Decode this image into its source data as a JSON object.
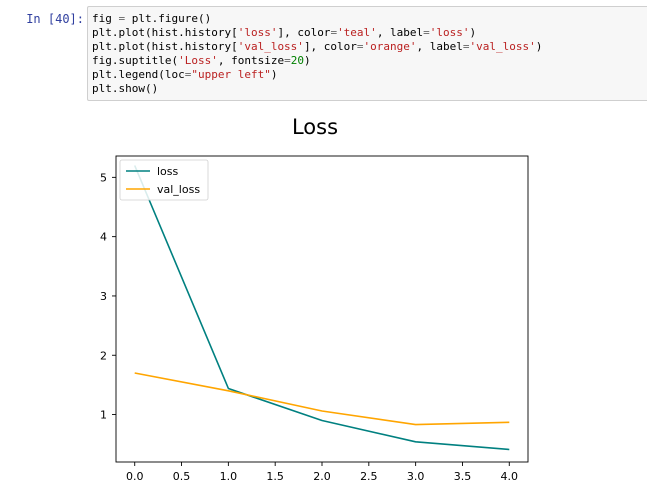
{
  "cell": {
    "prompt": "In [40]:",
    "code_lines": [
      [
        {
          "t": "fig ",
          "c": ""
        },
        {
          "t": "=",
          "c": "op"
        },
        {
          "t": " plt.figure()",
          "c": ""
        }
      ],
      [
        {
          "t": "plt.plot(hist.history[",
          "c": ""
        },
        {
          "t": "'loss'",
          "c": "str"
        },
        {
          "t": "], color",
          "c": ""
        },
        {
          "t": "=",
          "c": "op"
        },
        {
          "t": "'teal'",
          "c": "str"
        },
        {
          "t": ", label",
          "c": ""
        },
        {
          "t": "=",
          "c": "op"
        },
        {
          "t": "'loss'",
          "c": "str"
        },
        {
          "t": ")",
          "c": ""
        }
      ],
      [
        {
          "t": "plt.plot(hist.history[",
          "c": ""
        },
        {
          "t": "'val_loss'",
          "c": "str"
        },
        {
          "t": "], color",
          "c": ""
        },
        {
          "t": "=",
          "c": "op"
        },
        {
          "t": "'orange'",
          "c": "str"
        },
        {
          "t": ", label",
          "c": ""
        },
        {
          "t": "=",
          "c": "op"
        },
        {
          "t": "'val_loss'",
          "c": "str"
        },
        {
          "t": ")",
          "c": ""
        }
      ],
      [
        {
          "t": "fig.suptitle(",
          "c": ""
        },
        {
          "t": "'Loss'",
          "c": "str"
        },
        {
          "t": ", fontsize",
          "c": ""
        },
        {
          "t": "=",
          "c": "op"
        },
        {
          "t": "20",
          "c": "num"
        },
        {
          "t": ")",
          "c": ""
        }
      ],
      [
        {
          "t": "plt.legend(loc",
          "c": ""
        },
        {
          "t": "=",
          "c": "op"
        },
        {
          "t": "\"upper left\"",
          "c": "str"
        },
        {
          "t": ")",
          "c": ""
        }
      ],
      [
        {
          "t": "plt.show()",
          "c": ""
        }
      ]
    ]
  },
  "chart_data": {
    "type": "line",
    "title": "Loss",
    "xlabel": "",
    "ylabel": "",
    "x": [
      0.0,
      1.0,
      2.0,
      3.0,
      4.0
    ],
    "series": [
      {
        "name": "loss",
        "color": "#008080",
        "values": [
          5.2,
          1.44,
          0.9,
          0.54,
          0.41
        ]
      },
      {
        "name": "val_loss",
        "color": "#ffa500",
        "values": [
          1.7,
          1.4,
          1.06,
          0.83,
          0.87
        ]
      }
    ],
    "xlim": [
      -0.2,
      4.2
    ],
    "ylim": [
      0.2,
      5.36
    ],
    "xticks": [
      "0.0",
      "0.5",
      "1.0",
      "1.5",
      "2.0",
      "2.5",
      "3.0",
      "3.5",
      "4.0"
    ],
    "xtick_values": [
      0,
      0.5,
      1,
      1.5,
      2,
      2.5,
      3,
      3.5,
      4
    ],
    "yticks": [
      "1",
      "2",
      "3",
      "4",
      "5"
    ],
    "ytick_values": [
      1,
      2,
      3,
      4,
      5
    ],
    "legend_loc": "upper left",
    "grid": false
  }
}
